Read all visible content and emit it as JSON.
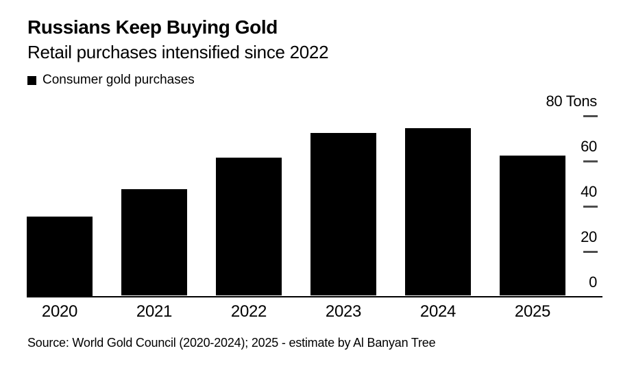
{
  "header": {
    "title": "Russians Keep Buying Gold",
    "subtitle": "Retail purchases intensified since 2022"
  },
  "legend": {
    "label": "Consumer gold purchases",
    "swatch_color": "#000000"
  },
  "chart_data": {
    "type": "bar",
    "title": "Russians Keep Buying Gold",
    "subtitle": "Retail purchases intensified since 2022",
    "series_name": "Consumer gold purchases",
    "categories": [
      "2020",
      "2021",
      "2022",
      "2023",
      "2024",
      "2025"
    ],
    "values": [
      35,
      47,
      61,
      72,
      74,
      62
    ],
    "unit": "Tons",
    "ylabel": "Tons",
    "ylim": [
      0,
      80
    ],
    "yticks": [
      0,
      20,
      40,
      60,
      80
    ],
    "ytick_labels": [
      "0",
      "20",
      "40",
      "60",
      "80 Tons"
    ],
    "axis_side": "right",
    "grid": false,
    "legend_position": "top-left",
    "bar_color": "#000000",
    "tick_mark_color": "#4d4d4d",
    "background_color": "#ffffff"
  },
  "footer": {
    "source": "Source: World Gold Council (2020-2024); 2025 - estimate by Al Banyan Tree"
  }
}
